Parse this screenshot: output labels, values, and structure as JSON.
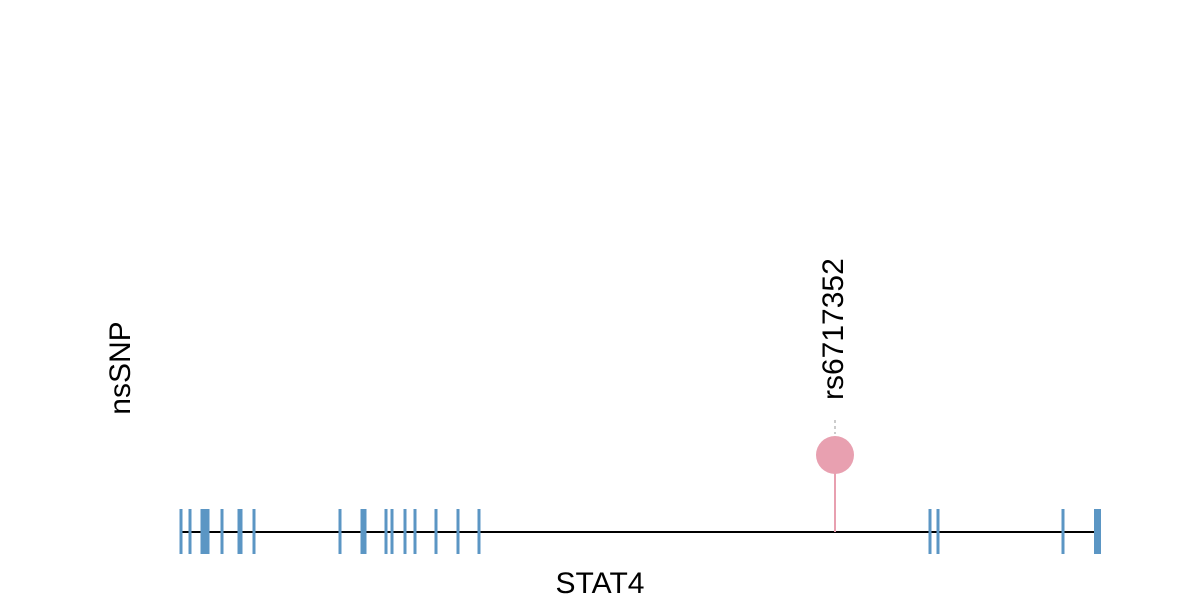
{
  "track": {
    "label": "nsSNP"
  },
  "gene": {
    "name": "STAT4"
  },
  "snps": [
    {
      "label": "rs6717352"
    }
  ]
}
